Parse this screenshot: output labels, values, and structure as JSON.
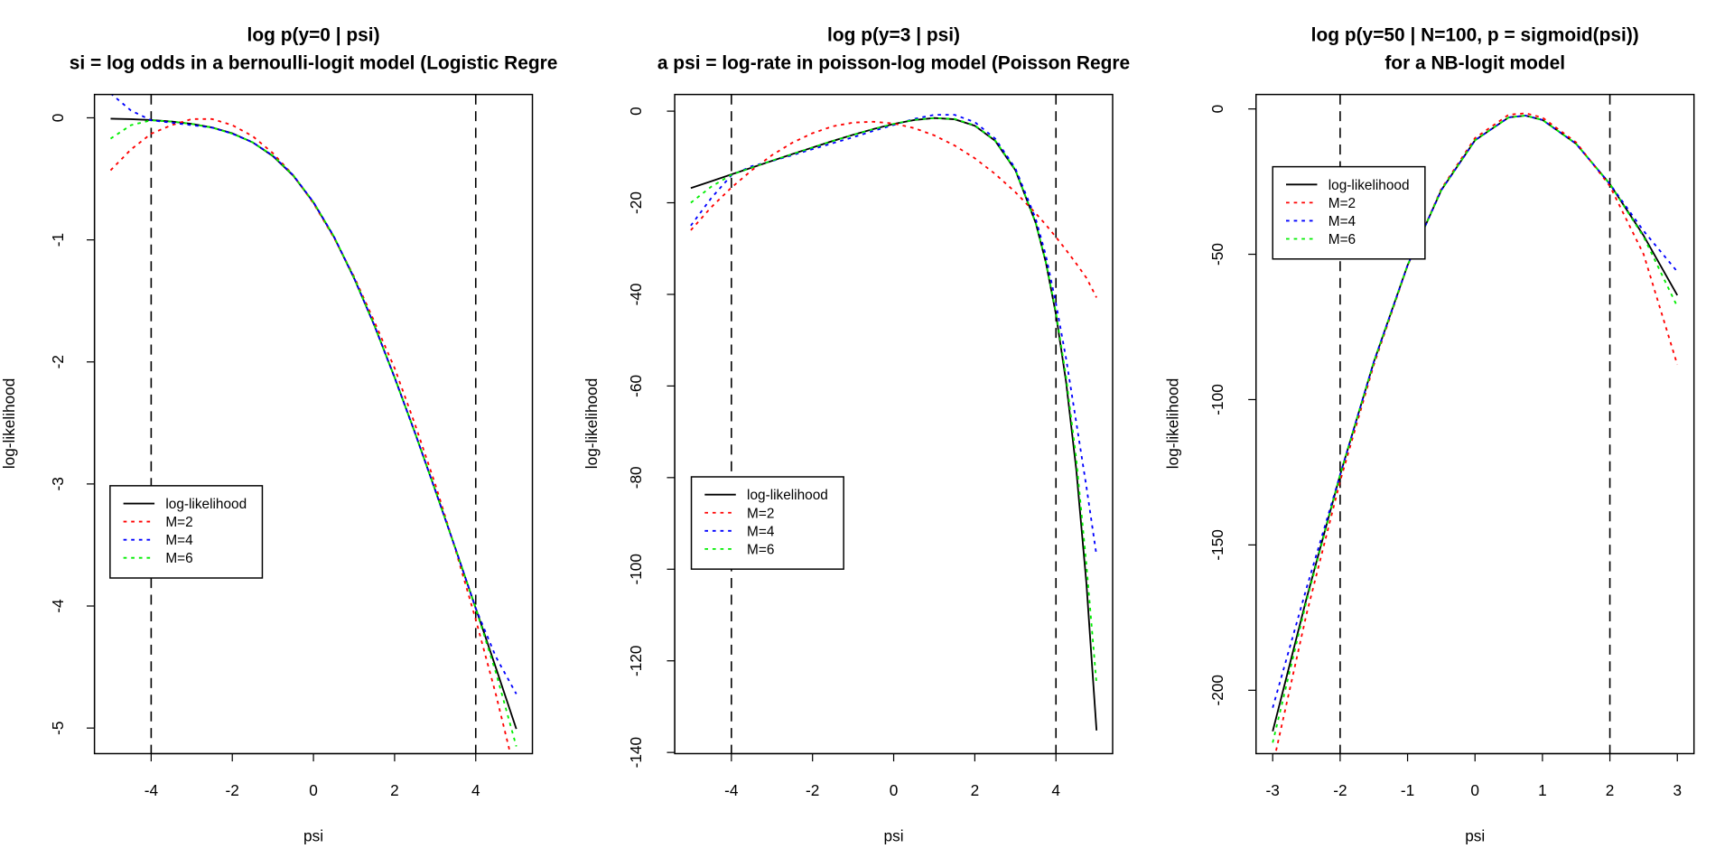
{
  "chart_data": [
    {
      "type": "line",
      "title": "log p(y=0 | psi)",
      "subtitle": "si = log odds in a bernoulli-logit model (Logistic Regre",
      "xlabel": "psi",
      "ylabel": "log-likelihood",
      "xticks": [
        -4,
        -2,
        0,
        2,
        4
      ],
      "yticks": [
        0,
        -1,
        -2,
        -3,
        -4,
        -5
      ],
      "vlines": [
        -4,
        4
      ],
      "legend_position": "left",
      "x": [
        -5,
        -4.5,
        -4,
        -3.5,
        -3,
        -2.5,
        -2,
        -1.5,
        -1,
        -0.5,
        0,
        0.5,
        1,
        1.5,
        2,
        2.5,
        3,
        3.5,
        4,
        4.5,
        5
      ],
      "series": [
        {
          "name": "log-likelihood",
          "color": "#000000",
          "dash": "solid",
          "values": [
            -0.007,
            -0.011,
            -0.018,
            -0.03,
            -0.049,
            -0.079,
            -0.127,
            -0.201,
            -0.313,
            -0.474,
            -0.693,
            -0.974,
            -1.313,
            -1.701,
            -2.127,
            -2.579,
            -3.049,
            -3.53,
            -4.018,
            -4.511,
            -5.007
          ]
        },
        {
          "name": "M=2",
          "color": "#ff0000",
          "dash": "dotted",
          "values": [
            -0.43,
            -0.26,
            -0.13,
            -0.06,
            -0.01,
            -0.01,
            -0.06,
            -0.15,
            -0.29,
            -0.47,
            -0.7,
            -0.98,
            -1.3,
            -1.67,
            -2.05,
            -2.51,
            -3.0,
            -3.54,
            -4.11,
            -4.73,
            -5.41
          ]
        },
        {
          "name": "M=4",
          "color": "#0000ff",
          "dash": "dotted",
          "values": [
            0.2,
            0.06,
            -0.02,
            -0.04,
            -0.06,
            -0.08,
            -0.13,
            -0.2,
            -0.31,
            -0.47,
            -0.69,
            -0.97,
            -1.31,
            -1.7,
            -2.13,
            -2.58,
            -3.05,
            -3.53,
            -4.02,
            -4.42,
            -4.72
          ]
        },
        {
          "name": "M=6",
          "color": "#00ee00",
          "dash": "dotted",
          "values": [
            -0.17,
            -0.06,
            -0.02,
            -0.03,
            -0.05,
            -0.08,
            -0.13,
            -0.2,
            -0.31,
            -0.47,
            -0.69,
            -0.97,
            -1.31,
            -1.7,
            -2.13,
            -2.58,
            -3.05,
            -3.53,
            -4.02,
            -4.55,
            -5.15
          ]
        }
      ]
    },
    {
      "type": "line",
      "title": "log p(y=3 | psi)",
      "subtitle": "a psi = log-rate in poisson-log model (Poisson Regre",
      "xlabel": "psi",
      "ylabel": "log-likelihood",
      "xticks": [
        -4,
        -2,
        0,
        2,
        4
      ],
      "yticks": [
        0,
        -20,
        -40,
        -60,
        -80,
        -100,
        -120,
        -140
      ],
      "vlines": [
        -4,
        4
      ],
      "legend_position": "left",
      "x": [
        -5,
        -4.5,
        -4,
        -3.5,
        -3,
        -2.5,
        -2,
        -1.5,
        -1,
        -0.5,
        0,
        0.5,
        1,
        1.5,
        2,
        2.5,
        3,
        3.5,
        3.75,
        4,
        4.25,
        4.5,
        4.75,
        5
      ],
      "series": [
        {
          "name": "log-likelihood",
          "color": "#000000",
          "dash": "solid",
          "values": [
            -16.8,
            -15.3,
            -13.81,
            -12.32,
            -10.84,
            -9.37,
            -7.93,
            -6.51,
            -5.16,
            -3.9,
            -2.79,
            -1.94,
            -1.51,
            -1.77,
            -3.18,
            -6.47,
            -12.88,
            -24.41,
            -33.0,
            -44.39,
            -59.1,
            -78.31,
            -103.1,
            -135.2
          ]
        },
        {
          "name": "M=2",
          "color": "#ff0000",
          "dash": "dotted",
          "values": [
            -26.0,
            -21.0,
            -16.7,
            -12.9,
            -9.6,
            -6.9,
            -4.8,
            -3.3,
            -2.5,
            -2.3,
            -2.7,
            -3.7,
            -5.3,
            -7.5,
            -10.3,
            -13.7,
            -17.7,
            -22.3,
            -24.8,
            -27.5,
            -30.3,
            -33.3,
            -36.4,
            -40.7
          ]
        },
        {
          "name": "M=4",
          "color": "#0000ff",
          "dash": "dotted",
          "values": [
            -25.0,
            -19.0,
            -14.0,
            -12.0,
            -10.9,
            -9.6,
            -8.3,
            -7.0,
            -5.7,
            -4.3,
            -3.0,
            -1.7,
            -0.8,
            -0.8,
            -2.4,
            -6.0,
            -12.5,
            -23.5,
            -31.5,
            -42.0,
            -54.0,
            -68.0,
            -82.0,
            -97.0
          ]
        },
        {
          "name": "M=6",
          "color": "#00ee00",
          "dash": "dotted",
          "values": [
            -20.0,
            -16.5,
            -13.9,
            -12.3,
            -10.8,
            -9.4,
            -7.9,
            -6.5,
            -5.2,
            -3.9,
            -2.8,
            -1.9,
            -1.5,
            -1.7,
            -3.1,
            -6.4,
            -12.8,
            -24.4,
            -33.0,
            -44.0,
            -58.0,
            -76.0,
            -99.0,
            -125.0
          ]
        }
      ]
    },
    {
      "type": "line",
      "title": "log p(y=50 | N=100, p = sigmoid(psi))",
      "subtitle": "for a NB-logit model",
      "xlabel": "psi",
      "ylabel": "log-likelihood",
      "xticks": [
        -3,
        -2,
        -1,
        0,
        1,
        2,
        3
      ],
      "yticks": [
        0,
        -50,
        -100,
        -150,
        -200
      ],
      "vlines": [
        -2,
        2
      ],
      "legend_position": "top-left",
      "x": [
        -3,
        -2.5,
        -2,
        -1.5,
        -1,
        -0.5,
        0,
        0.5,
        0.75,
        1,
        1.5,
        2,
        2.5,
        3
      ],
      "series": [
        {
          "name": "log-likelihood",
          "color": "#000000",
          "dash": "solid",
          "values": [
            -214.1,
            -168.6,
            -125.8,
            -87.0,
            -53.8,
            -27.9,
            -10.8,
            -2.9,
            -2.3,
            -3.8,
            -12.0,
            -25.8,
            -43.6,
            -64.1
          ]
        },
        {
          "name": "M=2",
          "color": "#ff0000",
          "dash": "dotted",
          "values": [
            -226.0,
            -174.0,
            -128.0,
            -88.0,
            -54.0,
            -27.5,
            -10.0,
            -2.0,
            -1.5,
            -3.0,
            -11.5,
            -26.5,
            -50.0,
            -88.0
          ]
        },
        {
          "name": "M=4",
          "color": "#0000ff",
          "dash": "dotted",
          "values": [
            -206.0,
            -165.0,
            -125.8,
            -87.0,
            -53.8,
            -27.9,
            -10.8,
            -2.9,
            -2.3,
            -3.8,
            -12.0,
            -25.8,
            -42.0,
            -56.0
          ]
        },
        {
          "name": "M=6",
          "color": "#00ee00",
          "dash": "dotted",
          "values": [
            -218.0,
            -169.5,
            -125.8,
            -87.0,
            -53.8,
            -27.9,
            -10.8,
            -2.9,
            -2.3,
            -3.8,
            -12.0,
            -25.8,
            -44.0,
            -68.0
          ]
        }
      ]
    }
  ]
}
